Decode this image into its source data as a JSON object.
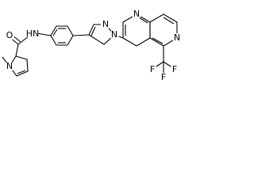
{
  "molecule": {
    "atoms": [
      "O",
      "HN",
      "N",
      "N",
      "N",
      "N",
      "N",
      "F",
      "F",
      "F"
    ]
  }
}
